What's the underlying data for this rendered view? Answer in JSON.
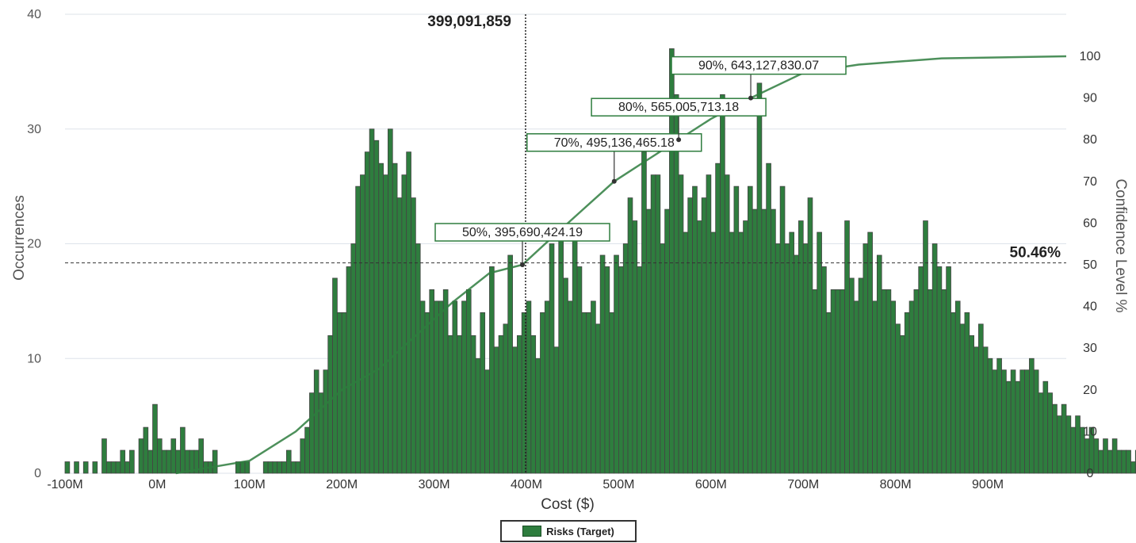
{
  "chart_data": {
    "type": "bar",
    "title": "",
    "xlabel": "Cost ($)",
    "ylabel": "Occurrences",
    "y2label": "Confidence Level %",
    "x_tick_labels": [
      "-100M",
      "0M",
      "100M",
      "200M",
      "300M",
      "400M",
      "500M",
      "600M",
      "700M",
      "800M",
      "900M"
    ],
    "x_tick_values": [
      -100,
      0,
      100,
      200,
      300,
      400,
      500,
      600,
      700,
      800,
      900
    ],
    "y_tick_labels": [
      "0",
      "10",
      "20",
      "30",
      "40"
    ],
    "y_tick_values": [
      0,
      10,
      20,
      30,
      40
    ],
    "y2_tick_labels": [
      "0",
      "10",
      "20",
      "30",
      "40",
      "50",
      "60",
      "70",
      "80",
      "90",
      "100"
    ],
    "y2_tick_values": [
      0,
      10,
      20,
      30,
      40,
      50,
      60,
      70,
      80,
      90,
      100
    ],
    "xlim": [
      -100,
      985
    ],
    "ylim": [
      0,
      40
    ],
    "y2lim": [
      0,
      100
    ],
    "grid": true,
    "bar_width_mm": 5,
    "x_units": "M$",
    "series": [
      {
        "name": "Risks (Target)",
        "color": "#2e7d3e",
        "x_start": -100,
        "values": [
          1,
          0,
          1,
          0,
          1,
          0,
          1,
          0,
          3,
          1,
          1,
          1,
          2,
          1,
          2,
          0,
          3,
          4,
          2,
          6,
          3,
          2,
          2,
          3,
          2,
          4,
          2,
          2,
          2,
          3,
          1,
          1,
          2,
          0,
          0,
          0,
          0,
          1,
          1,
          1,
          0,
          0,
          0,
          1,
          1,
          1,
          1,
          1,
          2,
          1,
          1,
          3,
          4,
          7,
          9,
          7,
          9,
          12,
          17,
          14,
          14,
          18,
          20,
          25,
          26,
          28,
          30,
          29,
          27,
          26,
          30,
          27,
          24,
          26,
          28,
          24,
          20,
          15,
          14,
          16,
          15,
          15,
          16,
          12,
          15,
          12,
          15,
          16,
          12,
          10,
          14,
          9,
          18,
          11,
          12,
          13,
          19,
          11,
          12,
          14,
          15,
          12,
          10,
          14,
          15,
          20,
          11,
          21,
          17,
          15,
          21,
          18,
          14,
          14,
          15,
          13,
          19,
          18,
          14,
          19,
          18,
          20,
          24,
          22,
          18,
          28,
          23,
          26,
          26,
          20,
          23,
          37,
          33,
          26,
          21,
          24,
          25,
          22,
          24,
          26,
          21,
          27,
          33,
          26,
          21,
          25,
          21,
          22,
          25,
          23,
          34,
          23,
          27,
          23,
          20,
          25,
          20,
          21,
          19,
          22,
          20,
          24,
          16,
          21,
          18,
          14,
          16,
          16,
          16,
          22,
          17,
          15,
          17,
          20,
          21,
          15,
          19,
          16,
          16,
          15,
          13,
          12,
          14,
          15,
          16,
          18,
          22,
          16,
          20,
          18,
          16,
          18,
          14,
          15,
          13,
          14,
          12,
          11,
          13,
          11,
          10,
          9,
          10,
          9,
          8,
          9,
          8,
          9,
          9,
          10,
          9,
          7,
          8,
          7,
          6,
          5,
          6,
          5,
          4,
          5,
          4,
          3,
          4,
          3,
          2,
          3,
          2,
          3,
          2,
          2,
          2,
          1,
          2,
          1,
          1,
          2,
          1,
          1,
          1,
          1,
          1,
          1,
          0,
          1,
          1,
          0,
          1,
          0,
          0,
          1,
          0,
          0,
          0,
          0,
          1,
          0,
          1,
          0,
          0,
          1,
          0,
          0,
          0,
          0,
          1,
          0,
          0,
          1
        ]
      }
    ],
    "cumulative_line": {
      "name": "Confidence Level %",
      "color": "#2e7d3e",
      "points": [
        [
          20,
          0
        ],
        [
          100,
          3
        ],
        [
          150,
          10
        ],
        [
          200,
          20
        ],
        [
          240,
          25
        ],
        [
          280,
          33
        ],
        [
          320,
          41
        ],
        [
          360,
          48
        ],
        [
          395.69,
          50
        ],
        [
          430,
          57
        ],
        [
          460,
          63
        ],
        [
          495.14,
          70
        ],
        [
          530,
          75
        ],
        [
          565.01,
          80
        ],
        [
          600,
          85
        ],
        [
          643.13,
          90
        ],
        [
          700,
          96
        ],
        [
          760,
          98
        ],
        [
          850,
          99.5
        ],
        [
          985,
          100
        ]
      ]
    },
    "annotations": [
      {
        "label": "50%, 395,690,424.19",
        "x": 395.69,
        "y2": 50
      },
      {
        "label": "70%, 495,136,465.18",
        "x": 495.14,
        "y2": 70
      },
      {
        "label": "80%, 565,005,713.18",
        "x": 565.01,
        "y2": 80
      },
      {
        "label": "90%, 643,127,830.07",
        "x": 643.13,
        "y2": 90
      }
    ],
    "target_line": {
      "x": 399.09,
      "label": "399,091,859"
    },
    "confidence_line": {
      "y2": 50.46,
      "label": "50.46%"
    },
    "legend": {
      "position": "bottom-center",
      "entries": [
        "Risks (Target)"
      ]
    }
  }
}
